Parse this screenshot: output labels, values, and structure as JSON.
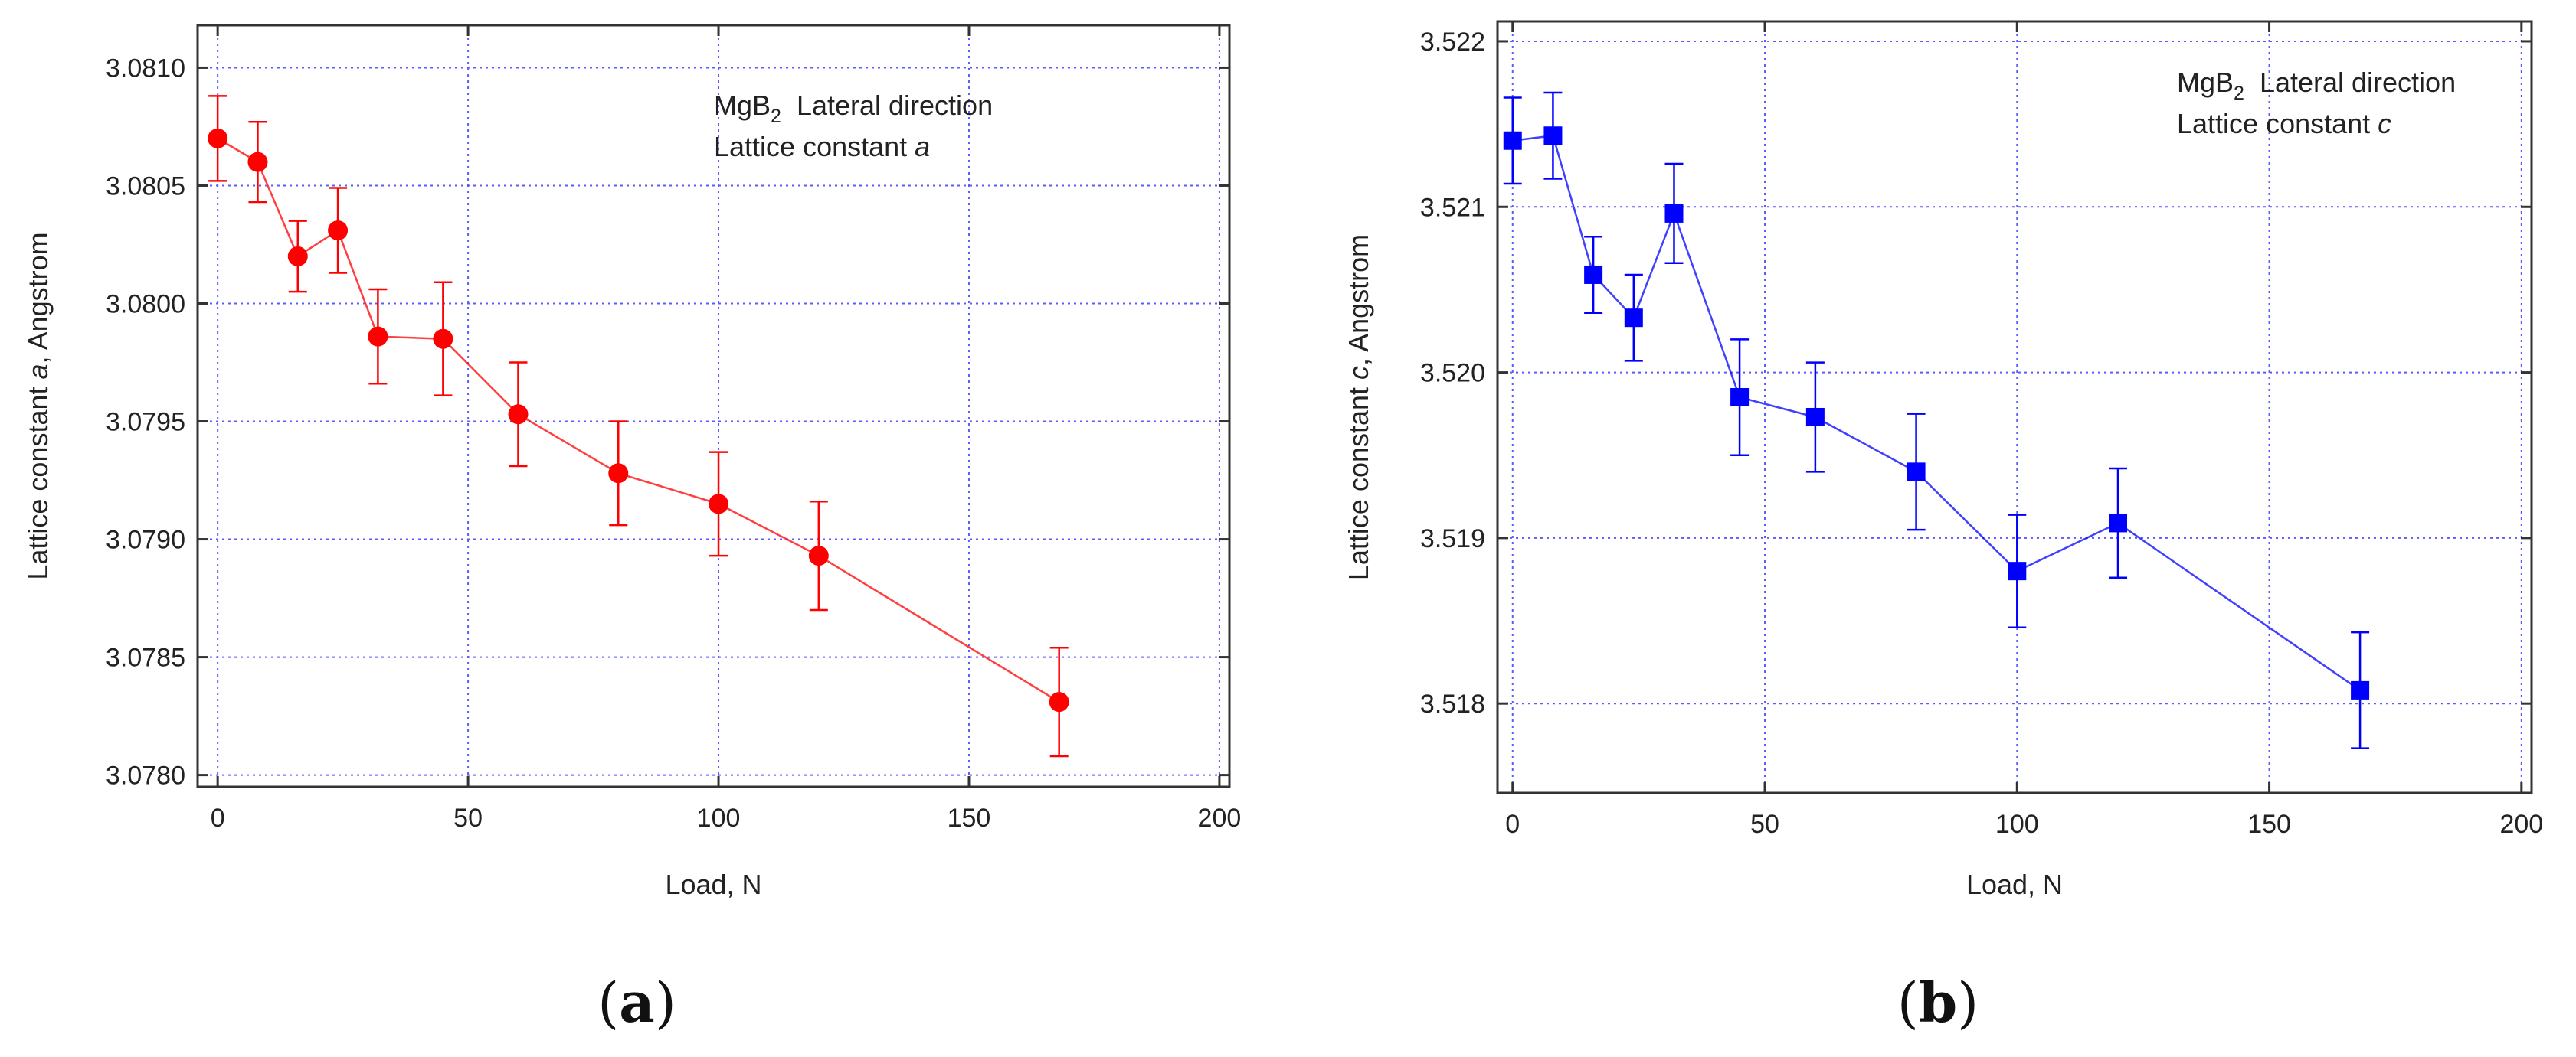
{
  "chart_data": [
    {
      "type": "scatter",
      "panel_label": "a",
      "xlabel": "Load, N",
      "ylabel": "Lattice constant a, Angstrom",
      "ylabel_parts": [
        "Lattice constant ",
        "a",
        ", Angstrom"
      ],
      "annotation": {
        "line1": {
          "base": "MgB",
          "sub": "2",
          "rest": "  Lateral direction"
        },
        "line2": {
          "text": "Lattice constant ",
          "italic": "a"
        }
      },
      "xlim": [
        -4,
        202
      ],
      "ylim": [
        3.07795,
        3.08118
      ],
      "xticks": [
        0,
        50,
        100,
        150,
        200
      ],
      "xtick_labels": [
        "0",
        "50",
        "100",
        "150",
        "200"
      ],
      "yticks": [
        3.078,
        3.0785,
        3.079,
        3.0795,
        3.08,
        3.0805,
        3.081
      ],
      "ytick_labels": [
        "3.0780",
        "3.0785",
        "3.0790",
        "3.0795",
        "3.0800",
        "3.0805",
        "3.0810"
      ],
      "grid": true,
      "marker": "circle",
      "color": "#ff0000",
      "series": [
        {
          "x": [
            0,
            8,
            16,
            24,
            32,
            45,
            60,
            80,
            100,
            120,
            168
          ],
          "y": [
            3.0807,
            3.0806,
            3.0802,
            3.08031,
            3.07986,
            3.07985,
            3.07953,
            3.07928,
            3.07915,
            3.07893,
            3.07831
          ],
          "err": [
            0.00018,
            0.00017,
            0.00015,
            0.00018,
            0.0002,
            0.00024,
            0.00022,
            0.00022,
            0.00022,
            0.00023,
            0.00023
          ]
        }
      ]
    },
    {
      "type": "scatter",
      "panel_label": "b",
      "xlabel": "Load, N",
      "ylabel": "Lattice constant c, Angstrom",
      "ylabel_parts": [
        "Lattice constant ",
        "c",
        ", Angstrom"
      ],
      "annotation": {
        "line1": {
          "base": "MgB",
          "sub": "2",
          "rest": "  Lateral direction"
        },
        "line2": {
          "text": "Lattice constant ",
          "italic": "c"
        }
      },
      "xlim": [
        -3,
        202
      ],
      "ylim": [
        3.51746,
        3.52212
      ],
      "xticks": [
        0,
        50,
        100,
        150,
        200
      ],
      "xtick_labels": [
        "0",
        "50",
        "100",
        "150",
        "200"
      ],
      "yticks": [
        3.518,
        3.519,
        3.52,
        3.521,
        3.522
      ],
      "ytick_labels": [
        "3.518",
        "3.519",
        "3.520",
        "3.521",
        "3.522"
      ],
      "grid": true,
      "marker": "square",
      "color": "#0000ff",
      "series": [
        {
          "x": [
            0,
            8,
            16,
            24,
            32,
            45,
            60,
            80,
            100,
            120,
            168
          ],
          "y": [
            3.5214,
            3.52143,
            3.52059,
            3.52033,
            3.52096,
            3.51985,
            3.51973,
            3.5194,
            3.5188,
            3.51909,
            3.51808
          ],
          "err": [
            0.00026,
            0.00026,
            0.00023,
            0.00026,
            0.0003,
            0.00035,
            0.00033,
            0.00035,
            0.00034,
            0.00033,
            0.00035
          ]
        }
      ]
    }
  ]
}
